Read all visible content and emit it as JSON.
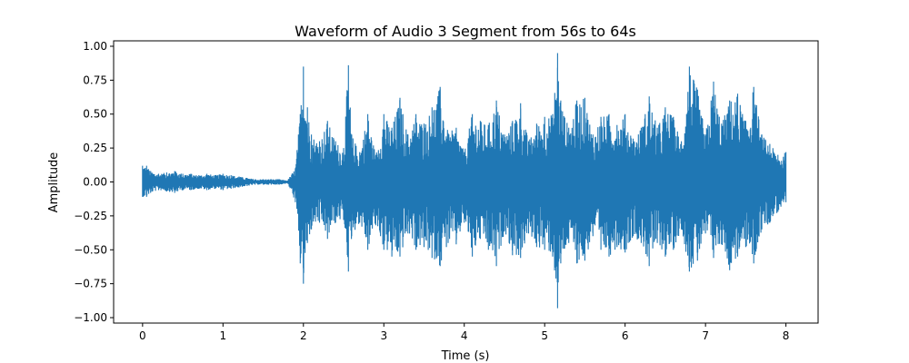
{
  "chart_data": {
    "type": "line",
    "title": "Waveform of Audio 3 Segment from 56s to 64s",
    "xlabel": "Time (s)",
    "ylabel": "Amplitude",
    "xlim": [
      -0.36,
      8.4
    ],
    "ylim": [
      -1.04,
      1.04
    ],
    "xticks": [
      0,
      1,
      2,
      3,
      4,
      5,
      6,
      7,
      8
    ],
    "xtick_labels": [
      "0",
      "1",
      "2",
      "3",
      "4",
      "5",
      "6",
      "7",
      "8"
    ],
    "yticks": [
      1.0,
      0.75,
      0.5,
      0.25,
      0.0,
      -0.25,
      -0.5,
      -0.75,
      -1.0
    ],
    "ytick_labels": [
      "1.00",
      "0.75",
      "0.50",
      "0.25",
      "0.00",
      "−0.25",
      "−0.50",
      "−0.75",
      "−1.00"
    ],
    "grid": false,
    "series": [
      {
        "color": "#1f77b4",
        "envelope_x": [
          0.0,
          0.05,
          0.1,
          0.2,
          0.3,
          0.4,
          0.5,
          0.6,
          0.7,
          0.8,
          0.9,
          1.0,
          1.1,
          1.2,
          1.3,
          1.4,
          1.5,
          1.6,
          1.7,
          1.8,
          1.9,
          1.96,
          2.0,
          2.05,
          2.1,
          2.2,
          2.3,
          2.4,
          2.5,
          2.56,
          2.6,
          2.7,
          2.8,
          2.9,
          3.0,
          3.1,
          3.2,
          3.3,
          3.4,
          3.5,
          3.6,
          3.7,
          3.8,
          3.9,
          4.0,
          4.1,
          4.2,
          4.3,
          4.4,
          4.5,
          4.6,
          4.7,
          4.8,
          4.9,
          5.0,
          5.1,
          5.16,
          5.2,
          5.3,
          5.4,
          5.5,
          5.6,
          5.7,
          5.8,
          5.9,
          6.0,
          6.1,
          6.2,
          6.3,
          6.4,
          6.5,
          6.6,
          6.7,
          6.8,
          6.9,
          7.0,
          7.1,
          7.2,
          7.3,
          7.4,
          7.5,
          7.6,
          7.7,
          7.8,
          7.9,
          8.0
        ],
        "envelope_max": [
          0.12,
          0.12,
          0.08,
          0.06,
          0.07,
          0.08,
          0.06,
          0.06,
          0.05,
          0.06,
          0.05,
          0.06,
          0.05,
          0.04,
          0.03,
          0.02,
          0.02,
          0.02,
          0.02,
          0.01,
          0.1,
          0.5,
          0.85,
          0.55,
          0.35,
          0.3,
          0.45,
          0.3,
          0.25,
          0.86,
          0.35,
          0.22,
          0.5,
          0.2,
          0.5,
          0.4,
          0.62,
          0.35,
          0.5,
          0.43,
          0.55,
          0.7,
          0.36,
          0.4,
          0.22,
          0.5,
          0.45,
          0.42,
          0.6,
          0.35,
          0.45,
          0.58,
          0.3,
          0.43,
          0.48,
          0.5,
          0.95,
          0.6,
          0.4,
          0.6,
          0.62,
          0.35,
          0.48,
          0.5,
          0.42,
          0.5,
          0.32,
          0.4,
          0.63,
          0.4,
          0.55,
          0.48,
          0.3,
          0.85,
          0.68,
          0.35,
          0.74,
          0.43,
          0.6,
          0.65,
          0.45,
          0.7,
          0.35,
          0.28,
          0.2,
          0.22
        ],
        "envelope_min": [
          -0.11,
          -0.11,
          -0.08,
          -0.06,
          -0.07,
          -0.08,
          -0.06,
          -0.06,
          -0.05,
          -0.06,
          -0.05,
          -0.06,
          -0.05,
          -0.04,
          -0.03,
          -0.02,
          -0.02,
          -0.02,
          -0.02,
          -0.01,
          -0.15,
          -0.6,
          -0.75,
          -0.45,
          -0.35,
          -0.3,
          -0.42,
          -0.3,
          -0.28,
          -0.66,
          -0.4,
          -0.3,
          -0.5,
          -0.32,
          -0.5,
          -0.55,
          -0.55,
          -0.38,
          -0.5,
          -0.48,
          -0.56,
          -0.62,
          -0.45,
          -0.46,
          -0.3,
          -0.55,
          -0.42,
          -0.5,
          -0.62,
          -0.36,
          -0.54,
          -0.56,
          -0.38,
          -0.48,
          -0.5,
          -0.55,
          -0.93,
          -0.6,
          -0.45,
          -0.6,
          -0.58,
          -0.4,
          -0.5,
          -0.55,
          -0.48,
          -0.52,
          -0.4,
          -0.45,
          -0.62,
          -0.45,
          -0.55,
          -0.5,
          -0.35,
          -0.66,
          -0.58,
          -0.38,
          -0.56,
          -0.46,
          -0.65,
          -0.55,
          -0.48,
          -0.6,
          -0.35,
          -0.3,
          -0.22,
          -0.15
        ]
      }
    ]
  }
}
